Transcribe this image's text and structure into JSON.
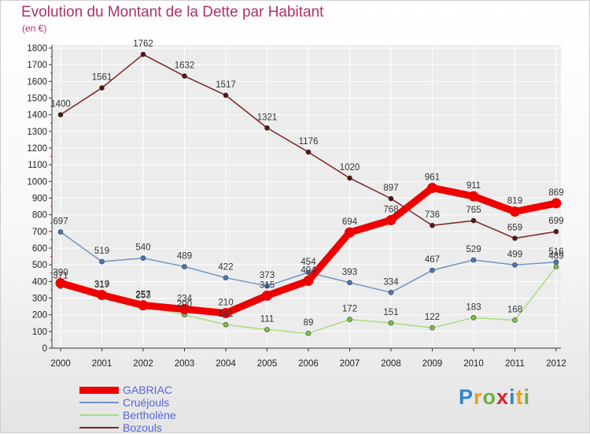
{
  "header": {
    "title": "Evolution du Montant de la Dette par Habitant",
    "subtitle": "(en €)"
  },
  "brand": {
    "logo_text": "Proxiti"
  },
  "colors": {
    "title": "#b0306a",
    "axis": "#333333",
    "grid": "#ffffff"
  },
  "chart_data": {
    "type": "line",
    "title": "Evolution du Montant de la Dette par Habitant",
    "subtitle": "(en €)",
    "x": [
      "2000",
      "2001",
      "2002",
      "2003",
      "2004",
      "2005",
      "2006",
      "2007",
      "2008",
      "2009",
      "2010",
      "2011",
      "2012"
    ],
    "yticks": [
      "0",
      "100",
      "200",
      "300",
      "400",
      "500",
      "600",
      "700",
      "800",
      "900",
      "1000",
      "1100",
      "1200",
      "1300",
      "1400",
      "1500",
      "1600",
      "1700",
      "1800"
    ],
    "ylim": [
      0,
      1800
    ],
    "grid": true,
    "legend_position": "bottom-left",
    "series": [
      {
        "name": "Bozouls",
        "color": "#7a2323",
        "marker": "#5a1212",
        "values": [
          1400,
          1561,
          1762,
          1632,
          1517,
          1321,
          1176,
          1020,
          897,
          736,
          765,
          659,
          699
        ],
        "labels": [
          "1400",
          "1561",
          "1762",
          "1632",
          "1517",
          "1321",
          "1176",
          "1020",
          "897",
          "736",
          "765",
          "659",
          "699"
        ]
      },
      {
        "name": "Cruéjouls",
        "color": "#6f95c4",
        "marker": "#4a78b5",
        "values": [
          697,
          519,
          540,
          489,
          422,
          373,
          454,
          393,
          334,
          467,
          529,
          499,
          516
        ],
        "labels": [
          "697",
          "519",
          "540",
          "489",
          "422",
          "373",
          "454",
          "393",
          "334",
          "467",
          "529",
          "499",
          "516"
        ]
      },
      {
        "name": "Bertholène",
        "color": "#a9dc7f",
        "marker": "#7ec24a",
        "values": [
          371,
          317,
          253,
          200,
          141,
          111,
          89,
          172,
          151,
          122,
          183,
          168,
          489
        ],
        "labels": [
          "371",
          "317",
          "253",
          "200",
          "141",
          "111",
          "89",
          "172",
          "151",
          "122",
          "183",
          "168",
          "489"
        ]
      },
      {
        "name": "GABRIAC",
        "color": "#ee0000",
        "marker": "#ee0000",
        "values": [
          390,
          319,
          257,
          234,
          210,
          315,
          404,
          694,
          768,
          961,
          911,
          819,
          869
        ],
        "labels": [
          "390",
          "319",
          "257",
          "234",
          "210",
          "315",
          "404",
          "694",
          "768",
          "961",
          "911",
          "819",
          "869"
        ]
      }
    ]
  },
  "legend": {
    "items": [
      {
        "label": "GABRIAC",
        "color": "#ee0000",
        "stroke": 9
      },
      {
        "label": "Cruéjouls",
        "color": "#6f95c4",
        "stroke": 2
      },
      {
        "label": "Bertholène",
        "color": "#a9dc7f",
        "stroke": 2
      },
      {
        "label": "Bozouls",
        "color": "#7a2323",
        "stroke": 2
      }
    ]
  }
}
